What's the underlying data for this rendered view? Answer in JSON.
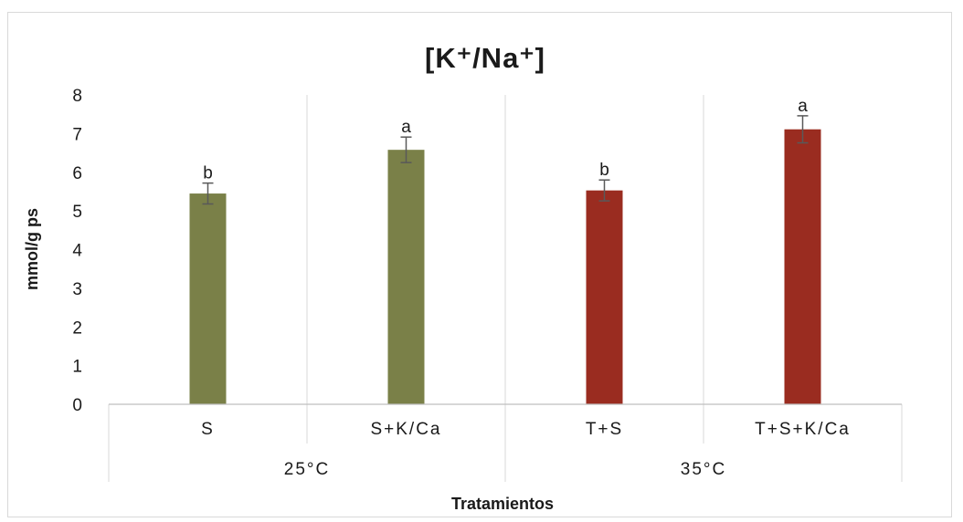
{
  "chart_data": {
    "type": "bar",
    "title": "[K⁺/Na⁺]",
    "xlabel": "Tratamientos",
    "ylabel": "mmol/g ps",
    "ylim": [
      0,
      8
    ],
    "yticks": [
      "0",
      "1",
      "2",
      "3",
      "4",
      "5",
      "6",
      "7",
      "8"
    ],
    "grid": "vertical category separators",
    "legend": "none",
    "categories": [
      "S",
      "S+K/Ca",
      "T+S",
      "T+S+K/Ca"
    ],
    "groups": [
      {
        "label": "25°C",
        "categories": [
          "S",
          "S+K/Ca"
        ]
      },
      {
        "label": "35°C",
        "categories": [
          "T+S",
          "T+S+K/Ca"
        ]
      }
    ],
    "values": [
      5.45,
      6.58,
      5.53,
      7.11
    ],
    "error": [
      0.27,
      0.33,
      0.27,
      0.35
    ],
    "significance_labels": [
      "b",
      "a",
      "b",
      "a"
    ],
    "colors": [
      "#7a8048",
      "#7a8048",
      "#9a2c20",
      "#9a2c20"
    ]
  }
}
